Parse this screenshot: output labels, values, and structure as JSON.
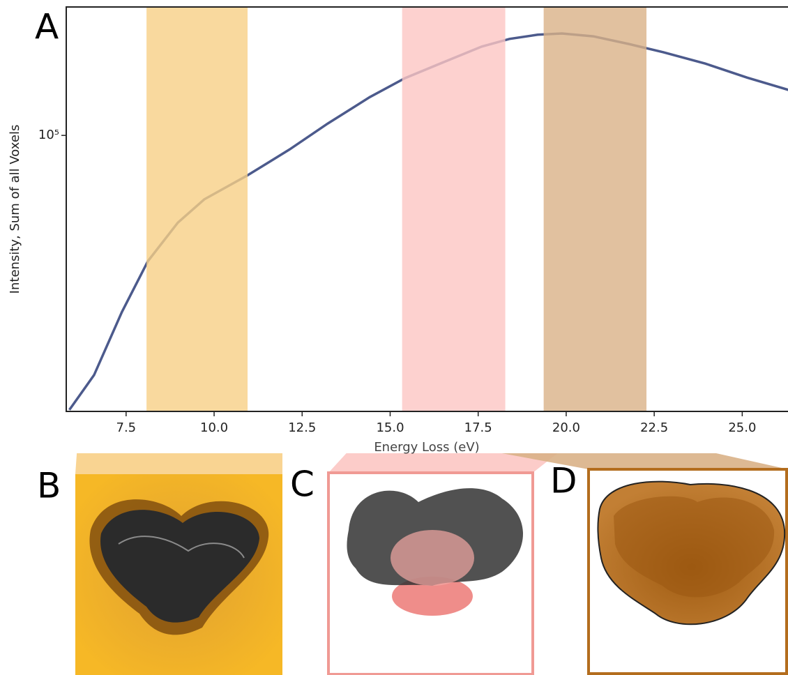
{
  "chart_data": {
    "type": "line",
    "panel_label": "A",
    "xlabel": "Energy Loss (eV)",
    "ylabel": "Intensity, Sum of all Voxels",
    "x": [
      5.89,
      6.59,
      7.38,
      8.12,
      8.97,
      9.72,
      10.95,
      12.14,
      13.23,
      14.42,
      15.42,
      16.61,
      17.6,
      18.39,
      19.19,
      19.88,
      20.77,
      21.77,
      22.76,
      23.95,
      25.14,
      26.33
    ],
    "values": [
      45200,
      50000,
      60000,
      69500,
      77700,
      83100,
      89100,
      96000,
      103500,
      111700,
      118000,
      124100,
      129300,
      132200,
      133800,
      134300,
      133200,
      130300,
      127200,
      123100,
      118200,
      114000
    ],
    "color": "#4c5a8c",
    "xlim": [
      5.8,
      26.3
    ],
    "ylim": [
      45000,
      145000
    ],
    "ylog": true,
    "xticks": [
      7.5,
      {
        "value": 10,
        "label": "10.0"
      },
      12.5,
      {
        "value": 15,
        "label": "15.0"
      },
      17.5,
      {
        "value": 20,
        "label": "20.0"
      },
      22.5,
      {
        "value": 25,
        "label": "25.0"
      }
    ],
    "yticks": [
      {
        "value": 100000,
        "label": "10⁵"
      }
    ],
    "bands": [
      {
        "label": "B",
        "range": [
          8.08,
          10.95
        ],
        "color": "#f8cf86"
      },
      {
        "label": "C",
        "range": [
          15.34,
          18.27
        ],
        "color": "#fcc6c3"
      },
      {
        "label": "D",
        "range": [
          19.36,
          22.28
        ],
        "color": "#d9b187"
      }
    ]
  }
}
